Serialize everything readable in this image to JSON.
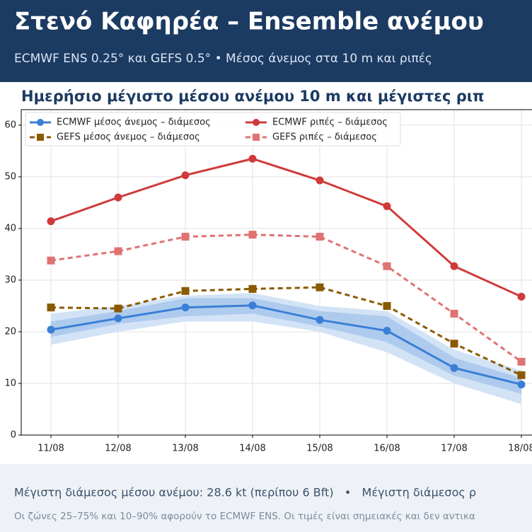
{
  "header": {
    "title": "Στενό Καφηρέα – Ensemble ανέμου",
    "subtitle": "ECMWF ENS 0.25° και GEFS 0.5° • Μέσος άνεμος στα 10 m και ριπές"
  },
  "chart_data": {
    "type": "line",
    "title": "Ημερήσιο μέγιστο μέσου ανέμου 10 m και μέγιστες ριπ",
    "categories": [
      "11/08",
      "12/08",
      "13/08",
      "14/08",
      "15/08",
      "16/08",
      "17/08",
      "18/08"
    ],
    "ylim": [
      0,
      63
    ],
    "yticks": [
      0,
      10,
      20,
      30,
      40,
      50,
      60
    ],
    "grid": true,
    "series": [
      {
        "name": "ECMWF μέσος άνεμος – διάμεσος",
        "color": "#3a7fd5",
        "marker": "circle",
        "dashed": false,
        "values": [
          20.4,
          22.6,
          24.7,
          25.1,
          22.3,
          20.2,
          13.0,
          9.8
        ]
      },
      {
        "name": "GEFS μέσος άνεμος – διάμεσος",
        "color": "#8a5a00",
        "marker": "square",
        "dashed": true,
        "values": [
          24.7,
          24.5,
          27.9,
          28.3,
          28.6,
          25.0,
          17.7,
          11.6
        ]
      },
      {
        "name": "ECMWF ριπές – διάμεσος",
        "color": "#d03a3a",
        "marker": "circle",
        "dashed": false,
        "values": [
          41.4,
          46.0,
          50.3,
          53.5,
          49.3,
          44.3,
          32.7,
          26.8
        ]
      },
      {
        "name": "GEFS ριπές – διάμεσος",
        "color": "#e07272",
        "marker": "square",
        "dashed": true,
        "values": [
          33.8,
          35.6,
          38.4,
          38.8,
          38.4,
          32.7,
          23.5,
          14.2
        ]
      }
    ],
    "bands": [
      {
        "color": "#d3e3f6",
        "lower": [
          17.5,
          20.0,
          22.0,
          22.0,
          20.0,
          16.0,
          10.0,
          6.0
        ],
        "upper": [
          23.5,
          25.0,
          27.0,
          27.5,
          25.0,
          24.0,
          16.5,
          12.5
        ]
      },
      {
        "color": "#aecbee",
        "lower": [
          19.0,
          21.5,
          23.0,
          23.5,
          21.0,
          18.0,
          11.5,
          8.0
        ],
        "upper": [
          22.0,
          24.0,
          26.5,
          26.5,
          24.0,
          23.0,
          15.0,
          11.0
        ]
      }
    ]
  },
  "footer": {
    "summary": "Μέγιστη διάμεσος μέσου ανέμου: 28.6 kt (περίπου 6 Bft)   •   Μέγιστη διάμεσος ρ",
    "note": "Οι ζώνες 25–75% και 10–90% αφορούν το ECMWF ENS. Οι τιμές είναι σημειακές και δεν αντικα"
  }
}
